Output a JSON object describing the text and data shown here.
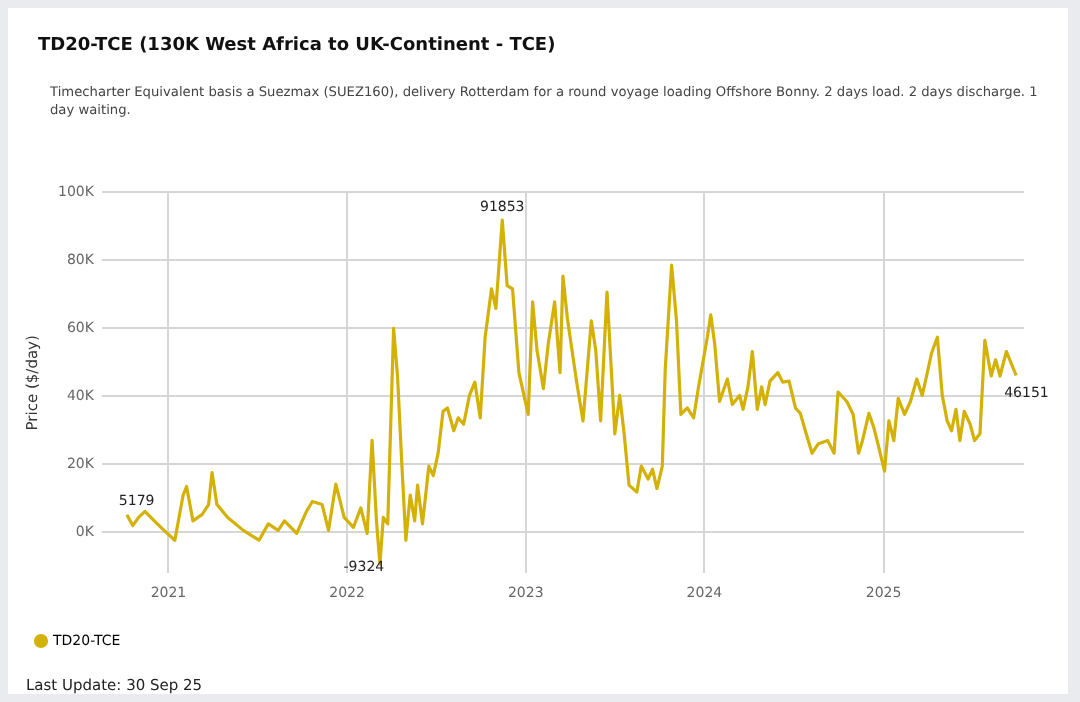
{
  "chart_data": {
    "type": "line",
    "title": "TD20-TCE (130K West Africa to UK-Continent - TCE)",
    "subtitle": "Timecharter Equivalent basis a Suezmax (SUEZ160), delivery Rotterdam for a round voyage loading Offshore Bonny. 2 days load. 2 days discharge. 1 day waiting.",
    "ylabel": "Price ($/day)",
    "annotations": [
      "Last Update: 30 Sep 25"
    ],
    "x": [
      "2020-10-08",
      "2020-10-20",
      "2020-11-01",
      "2020-11-14",
      "2020-12-03",
      "2020-12-23",
      "2021-01-14",
      "2021-01-31",
      "2021-02-07",
      "2021-02-20",
      "2021-03-11",
      "2021-03-24",
      "2021-03-31",
      "2021-04-10",
      "2021-05-02",
      "2021-06-03",
      "2021-07-05",
      "2021-07-24",
      "2021-08-13",
      "2021-08-26",
      "2021-09-20",
      "2021-10-10",
      "2021-10-22",
      "2021-11-11",
      "2021-11-24",
      "2021-12-09",
      "2021-12-26",
      "2022-01-14",
      "2022-01-29",
      "2022-02-11",
      "2022-02-21",
      "2022-03-02",
      "2022-03-09",
      "2022-03-16",
      "2022-03-25",
      "2022-04-06",
      "2022-04-14",
      "2022-04-23",
      "2022-05-01",
      "2022-05-10",
      "2022-05-19",
      "2022-05-25",
      "2022-06-04",
      "2022-06-17",
      "2022-06-26",
      "2022-07-06",
      "2022-07-16",
      "2022-07-25",
      "2022-08-07",
      "2022-08-16",
      "2022-08-27",
      "2022-09-08",
      "2022-09-19",
      "2022-09-30",
      "2022-10-10",
      "2022-10-23",
      "2022-11-01",
      "2022-11-14",
      "2022-11-24",
      "2022-12-05",
      "2022-12-18",
      "2023-01-06",
      "2023-01-15",
      "2023-01-24",
      "2023-02-06",
      "2023-02-16",
      "2023-03-01",
      "2023-03-12",
      "2023-03-18",
      "2023-03-27",
      "2023-04-15",
      "2023-04-28",
      "2023-05-15",
      "2023-05-24",
      "2023-06-03",
      "2023-06-16",
      "2023-07-02",
      "2023-07-12",
      "2023-07-21",
      "2023-07-31",
      "2023-08-16",
      "2023-08-25",
      "2023-09-08",
      "2023-09-17",
      "2023-09-26",
      "2023-10-07",
      "2023-10-13",
      "2023-10-26",
      "2023-11-05",
      "2023-11-14",
      "2023-11-27",
      "2023-12-10",
      "2023-12-20",
      "2024-01-07",
      "2024-01-14",
      "2024-01-22",
      "2024-02-01",
      "2024-02-17",
      "2024-02-27",
      "2024-03-13",
      "2024-03-20",
      "2024-03-30",
      "2024-04-08",
      "2024-04-18",
      "2024-04-27",
      "2024-05-04",
      "2024-05-14",
      "2024-05-30",
      "2024-06-09",
      "2024-06-22",
      "2024-07-05",
      "2024-07-15",
      "2024-07-27",
      "2024-08-08",
      "2024-08-21",
      "2024-09-09",
      "2024-09-22",
      "2024-09-30",
      "2024-10-18",
      "2024-10-31",
      "2024-11-11",
      "2024-11-19",
      "2024-12-02",
      "2024-12-12",
      "2024-12-22",
      "2025-01-03",
      "2025-01-12",
      "2025-01-22",
      "2025-01-31",
      "2025-02-13",
      "2025-02-25",
      "2025-03-10",
      "2025-03-21",
      "2025-03-30",
      "2025-04-09",
      "2025-04-21",
      "2025-05-01",
      "2025-05-11",
      "2025-05-20",
      "2025-05-29",
      "2025-06-06",
      "2025-06-15",
      "2025-06-27",
      "2025-07-06",
      "2025-07-17",
      "2025-07-27",
      "2025-08-09",
      "2025-08-18",
      "2025-08-27",
      "2025-09-09",
      "2025-09-29"
    ],
    "series": [
      {
        "name": "TD20-TCE",
        "color": "#d4b106",
        "values": [
          5179,
          2000,
          4400,
          6200,
          3400,
          600,
          -2300,
          11000,
          13500,
          3400,
          5300,
          8200,
          17600,
          8200,
          4400,
          600,
          -2300,
          2500,
          600,
          3400,
          -300,
          6200,
          9100,
          8200,
          600,
          14200,
          4400,
          1500,
          7200,
          -300,
          27100,
          3400,
          -9324,
          4400,
          2500,
          60000,
          46000,
          19500,
          -2300,
          11000,
          3400,
          13900,
          2500,
          19500,
          16700,
          23300,
          35600,
          36600,
          29900,
          33700,
          31800,
          40300,
          44200,
          33700,
          57400,
          71600,
          65900,
          91853,
          72600,
          71600,
          47000,
          34700,
          67800,
          53600,
          42300,
          55500,
          67800,
          47000,
          75400,
          63000,
          44200,
          32800,
          62200,
          53600,
          32800,
          70700,
          29000,
          40300,
          29000,
          13900,
          11900,
          19500,
          15700,
          18600,
          12900,
          19500,
          48000,
          78600,
          62200,
          34700,
          36600,
          33700,
          42800,
          57400,
          64000,
          55500,
          38500,
          45100,
          37600,
          40300,
          36200,
          42800,
          53200,
          36200,
          42800,
          37600,
          44500,
          47000,
          44200,
          44500,
          36600,
          35000,
          29000,
          23300,
          26100,
          27000,
          23300,
          41300,
          38500,
          34700,
          23300,
          27000,
          35000,
          30900,
          25200,
          18000,
          32800,
          27000,
          39400,
          34700,
          38500,
          45100,
          40300,
          46000,
          52700,
          57400,
          40300,
          32800,
          29900,
          36200,
          27000,
          35600,
          31800,
          27000,
          29000,
          56500,
          46000,
          50800,
          46000,
          53200,
          46151
        ],
        "value_labels": [
          "5179",
          null,
          null,
          null,
          null,
          null,
          null,
          null,
          null,
          null,
          null,
          null,
          null,
          null,
          null,
          null,
          null,
          null,
          null,
          null,
          null,
          null,
          null,
          null,
          null,
          null,
          null,
          null,
          null,
          null,
          null,
          null,
          "-9324",
          null,
          null,
          null,
          null,
          null,
          null,
          null,
          null,
          null,
          null,
          null,
          null,
          null,
          null,
          null,
          null,
          null,
          null,
          null,
          null,
          null,
          null,
          null,
          null,
          "91853",
          null,
          null,
          null,
          null,
          null,
          null,
          null,
          null,
          null,
          null,
          null,
          null,
          null,
          null,
          null,
          null,
          null,
          null,
          null,
          null,
          null,
          null,
          null,
          null,
          null,
          null,
          null,
          null,
          null,
          null,
          null,
          null,
          null,
          null,
          null,
          null,
          null,
          null,
          null,
          null,
          null,
          null,
          null,
          null,
          null,
          null,
          null,
          null,
          null,
          null,
          null,
          null,
          null,
          null,
          null,
          null,
          null,
          null,
          null,
          null,
          null,
          null,
          null,
          null,
          null,
          null,
          null,
          null,
          null,
          null,
          null,
          null,
          null,
          null,
          null,
          null,
          null,
          null,
          null,
          null,
          null,
          null,
          null,
          null,
          null,
          null,
          null,
          null,
          null,
          null,
          null,
          null,
          "46151"
        ]
      }
    ],
    "xlim": [
      "2020-08-18",
      "2025-10-15"
    ],
    "xticks": [
      "2021",
      "2022",
      "2023",
      "2024",
      "2025"
    ],
    "ylim": [
      -12000,
      100000
    ],
    "yticks": [
      {
        "value": 0,
        "label": "0K"
      },
      {
        "value": 20000,
        "label": "20K"
      },
      {
        "value": 40000,
        "label": "40K"
      },
      {
        "value": 60000,
        "label": "60K"
      },
      {
        "value": 80000,
        "label": "80K"
      },
      {
        "value": 100000,
        "label": "100K"
      }
    ],
    "grid": true,
    "line_style": "solid",
    "marker": "none",
    "legend": "bottom left"
  }
}
